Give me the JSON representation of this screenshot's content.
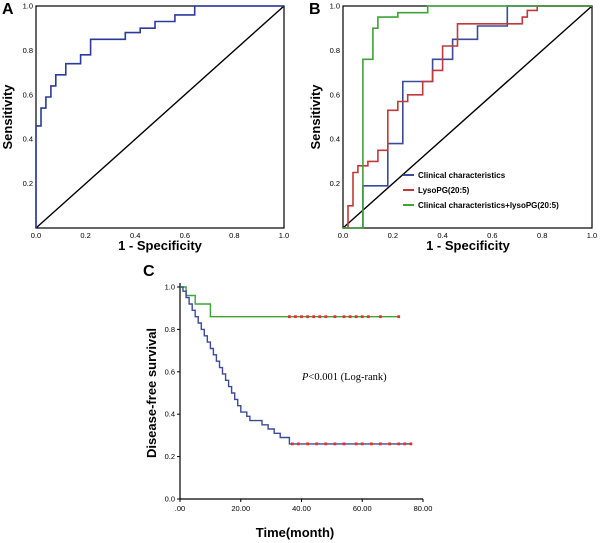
{
  "chart_data": [
    {
      "panel": "A",
      "type": "line",
      "xlabel": "1 - Specificity",
      "ylabel": "Sensitivity",
      "xlim": [
        0,
        1
      ],
      "ylim": [
        0,
        1
      ],
      "x_ticks": [
        "0.0",
        "0.2",
        "0.4",
        "0.6",
        "0.8",
        "1.0"
      ],
      "y_ticks": [
        "0.2",
        "0.4",
        "0.6",
        "0.8",
        "1.0"
      ],
      "grid": false,
      "reference_line": true,
      "series": [
        {
          "color": "#2b3a9e",
          "step_points": [
            [
              0,
              0
            ],
            [
              0,
              0.46
            ],
            [
              0.02,
              0.46
            ],
            [
              0.02,
              0.54
            ],
            [
              0.04,
              0.54
            ],
            [
              0.04,
              0.59
            ],
            [
              0.06,
              0.59
            ],
            [
              0.06,
              0.64
            ],
            [
              0.08,
              0.64
            ],
            [
              0.08,
              0.69
            ],
            [
              0.12,
              0.69
            ],
            [
              0.12,
              0.74
            ],
            [
              0.18,
              0.74
            ],
            [
              0.18,
              0.78
            ],
            [
              0.22,
              0.78
            ],
            [
              0.22,
              0.85
            ],
            [
              0.36,
              0.85
            ],
            [
              0.36,
              0.88
            ],
            [
              0.42,
              0.88
            ],
            [
              0.42,
              0.9
            ],
            [
              0.48,
              0.9
            ],
            [
              0.48,
              0.93
            ],
            [
              0.56,
              0.93
            ],
            [
              0.56,
              0.96
            ],
            [
              0.64,
              0.96
            ],
            [
              0.64,
              0.98
            ],
            [
              0.64,
              1.0
            ],
            [
              1.0,
              1.0
            ]
          ]
        }
      ]
    },
    {
      "panel": "B",
      "type": "line",
      "xlabel": "1 - Specificity",
      "ylabel": "Sensitivity",
      "xlim": [
        0,
        1
      ],
      "ylim": [
        0,
        1
      ],
      "x_ticks": [
        "0.0",
        "0.2",
        "0.4",
        "0.6",
        "0.8",
        "1.0"
      ],
      "y_ticks": [
        "0.2",
        "0.4",
        "0.6",
        "0.8",
        "1.0"
      ],
      "grid": false,
      "reference_line": true,
      "legend_position": "bottom-right",
      "series": [
        {
          "name": "Clinical characteristics",
          "color": "#3b4b9a",
          "step_points": [
            [
              0,
              0
            ],
            [
              0.08,
              0
            ],
            [
              0.08,
              0.19
            ],
            [
              0.18,
              0.19
            ],
            [
              0.18,
              0.38
            ],
            [
              0.24,
              0.38
            ],
            [
              0.24,
              0.66
            ],
            [
              0.36,
              0.66
            ],
            [
              0.36,
              0.76
            ],
            [
              0.44,
              0.76
            ],
            [
              0.44,
              0.85
            ],
            [
              0.54,
              0.85
            ],
            [
              0.54,
              0.91
            ],
            [
              0.66,
              0.91
            ],
            [
              0.66,
              0.95
            ],
            [
              0.66,
              1.0
            ],
            [
              1.0,
              1.0
            ]
          ]
        },
        {
          "name": "LysoPG(20:5)",
          "color": "#c0393b",
          "step_points": [
            [
              0,
              0
            ],
            [
              0.02,
              0
            ],
            [
              0.02,
              0.1
            ],
            [
              0.04,
              0.1
            ],
            [
              0.04,
              0.25
            ],
            [
              0.06,
              0.25
            ],
            [
              0.06,
              0.28
            ],
            [
              0.1,
              0.28
            ],
            [
              0.1,
              0.3
            ],
            [
              0.14,
              0.3
            ],
            [
              0.14,
              0.35
            ],
            [
              0.18,
              0.35
            ],
            [
              0.18,
              0.53
            ],
            [
              0.22,
              0.53
            ],
            [
              0.22,
              0.57
            ],
            [
              0.26,
              0.57
            ],
            [
              0.26,
              0.6
            ],
            [
              0.32,
              0.6
            ],
            [
              0.32,
              0.66
            ],
            [
              0.36,
              0.66
            ],
            [
              0.36,
              0.71
            ],
            [
              0.4,
              0.71
            ],
            [
              0.4,
              0.82
            ],
            [
              0.46,
              0.82
            ],
            [
              0.46,
              0.92
            ],
            [
              0.72,
              0.92
            ],
            [
              0.72,
              0.95
            ],
            [
              0.74,
              0.95
            ],
            [
              0.74,
              0.98
            ],
            [
              0.78,
              0.98
            ],
            [
              0.78,
              1.0
            ],
            [
              1.0,
              1.0
            ]
          ]
        },
        {
          "name": "Clinical characteristics+lysoPG(20:5)",
          "color": "#3fa23a",
          "step_points": [
            [
              0,
              0
            ],
            [
              0.08,
              0
            ],
            [
              0.08,
              0.76
            ],
            [
              0.12,
              0.76
            ],
            [
              0.12,
              0.9
            ],
            [
              0.14,
              0.9
            ],
            [
              0.14,
              0.95
            ],
            [
              0.22,
              0.95
            ],
            [
              0.22,
              0.97
            ],
            [
              0.34,
              0.97
            ],
            [
              0.34,
              1.0
            ],
            [
              1.0,
              1.0
            ]
          ]
        }
      ]
    },
    {
      "panel": "C",
      "type": "line",
      "xlabel": "Time(month)",
      "ylabel": "Disease-free survival",
      "xlim": [
        0,
        80
      ],
      "ylim": [
        0,
        1
      ],
      "x_ticks": [
        ".00",
        "20.00",
        "40.00",
        "60.00",
        "80.00"
      ],
      "y_ticks": [
        "0.0",
        "0.2",
        "0.4",
        "0.6",
        "0.8",
        "1.0"
      ],
      "grid": false,
      "annotation": {
        "italic": "P",
        "text": "<0.001 (Log-rank)"
      },
      "series": [
        {
          "color": "#3fa23a",
          "step_points": [
            [
              0,
              1.0
            ],
            [
              2,
              1.0
            ],
            [
              2,
              0.96
            ],
            [
              5,
              0.96
            ],
            [
              5,
              0.92
            ],
            [
              10,
              0.92
            ],
            [
              10,
              0.86
            ],
            [
              72,
              0.86
            ]
          ],
          "censored_x": [
            36,
            38,
            40,
            42,
            44,
            46,
            48,
            51,
            54,
            56,
            58,
            60,
            62,
            66,
            72
          ]
        },
        {
          "color": "#3b4b9a",
          "step_points": [
            [
              0,
              1.0
            ],
            [
              1,
              1.0
            ],
            [
              1,
              0.98
            ],
            [
              2,
              0.98
            ],
            [
              2,
              0.95
            ],
            [
              3,
              0.95
            ],
            [
              3,
              0.92
            ],
            [
              4,
              0.92
            ],
            [
              4,
              0.89
            ],
            [
              5,
              0.89
            ],
            [
              5,
              0.86
            ],
            [
              6,
              0.86
            ],
            [
              6,
              0.83
            ],
            [
              7,
              0.83
            ],
            [
              7,
              0.8
            ],
            [
              8,
              0.8
            ],
            [
              8,
              0.77
            ],
            [
              9,
              0.77
            ],
            [
              9,
              0.74
            ],
            [
              10,
              0.74
            ],
            [
              10,
              0.71
            ],
            [
              11,
              0.71
            ],
            [
              11,
              0.68
            ],
            [
              12,
              0.68
            ],
            [
              12,
              0.65
            ],
            [
              13,
              0.65
            ],
            [
              13,
              0.62
            ],
            [
              14,
              0.62
            ],
            [
              14,
              0.59
            ],
            [
              15,
              0.59
            ],
            [
              15,
              0.56
            ],
            [
              16,
              0.56
            ],
            [
              16,
              0.53
            ],
            [
              17,
              0.53
            ],
            [
              17,
              0.5
            ],
            [
              18,
              0.5
            ],
            [
              18,
              0.47
            ],
            [
              19,
              0.47
            ],
            [
              19,
              0.44
            ],
            [
              20,
              0.44
            ],
            [
              20,
              0.41
            ],
            [
              22,
              0.41
            ],
            [
              22,
              0.39
            ],
            [
              23,
              0.39
            ],
            [
              23,
              0.37
            ],
            [
              27,
              0.37
            ],
            [
              27,
              0.35
            ],
            [
              29,
              0.35
            ],
            [
              29,
              0.33
            ],
            [
              31,
              0.33
            ],
            [
              31,
              0.31
            ],
            [
              33,
              0.31
            ],
            [
              33,
              0.29
            ],
            [
              36,
              0.29
            ],
            [
              36,
              0.26
            ],
            [
              76,
              0.26
            ]
          ],
          "censored_x": [
            37,
            39,
            42,
            45,
            48,
            51,
            54,
            58,
            60,
            63,
            66,
            69,
            72,
            74,
            76
          ]
        }
      ]
    }
  ],
  "panels": {
    "A": {
      "letter": "A"
    },
    "B": {
      "letter": "B"
    },
    "C": {
      "letter": "C"
    }
  },
  "colors": {
    "censor_marker": "#e8302b",
    "diagonal": "#000000"
  }
}
